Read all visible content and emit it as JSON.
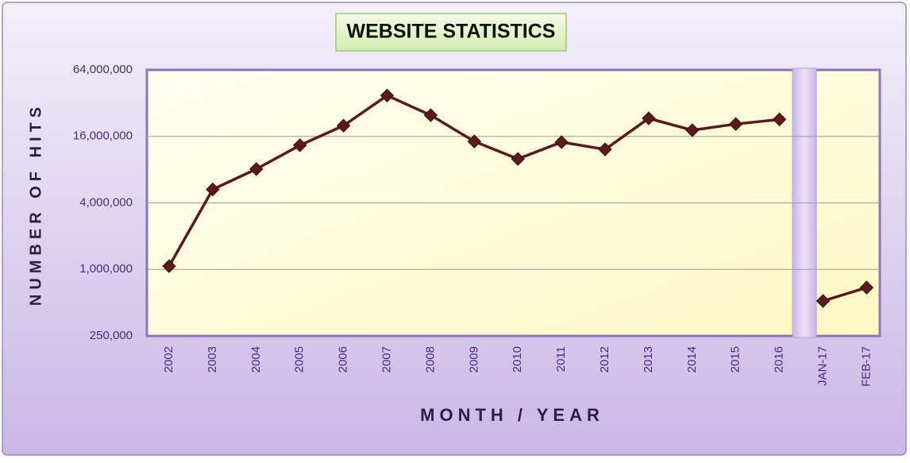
{
  "chart_data": {
    "type": "line",
    "title": "WEBSITE STATISTICS",
    "x_label": "MONTH / YEAR",
    "y_label": "NUMBER OF HITS",
    "categories": [
      "2002",
      "2003",
      "2004",
      "2005",
      "2006",
      "2007",
      "2008",
      "2009",
      "2010",
      "2011",
      "2012",
      "2013",
      "2014",
      "2015",
      "2016",
      "JAN-17",
      "FEB-17"
    ],
    "series": [
      {
        "color": "#5c1a1a",
        "values": [
          1070000,
          5300000,
          8100000,
          13300000,
          20000000,
          37500000,
          24900000,
          14400000,
          10000000,
          14200000,
          12200000,
          23300000,
          18200000,
          20700000,
          22800000,
          null,
          null
        ]
      },
      {
        "color": "#5c1a1a",
        "values": [
          null,
          null,
          null,
          null,
          null,
          null,
          null,
          null,
          null,
          null,
          null,
          null,
          null,
          null,
          null,
          518000,
          685000
        ]
      }
    ],
    "log_scale": true,
    "grid": true,
    "ylim": [
      250000,
      64000000
    ],
    "yticks": [
      {
        "value": 250000,
        "label": "250,000"
      },
      {
        "value": 1000000,
        "label": "1,000,000"
      },
      {
        "value": 4000000,
        "label": "4,000,000"
      },
      {
        "value": 16000000,
        "label": "16,000,000"
      },
      {
        "value": 64000000,
        "label": "64,000,000"
      }
    ]
  }
}
